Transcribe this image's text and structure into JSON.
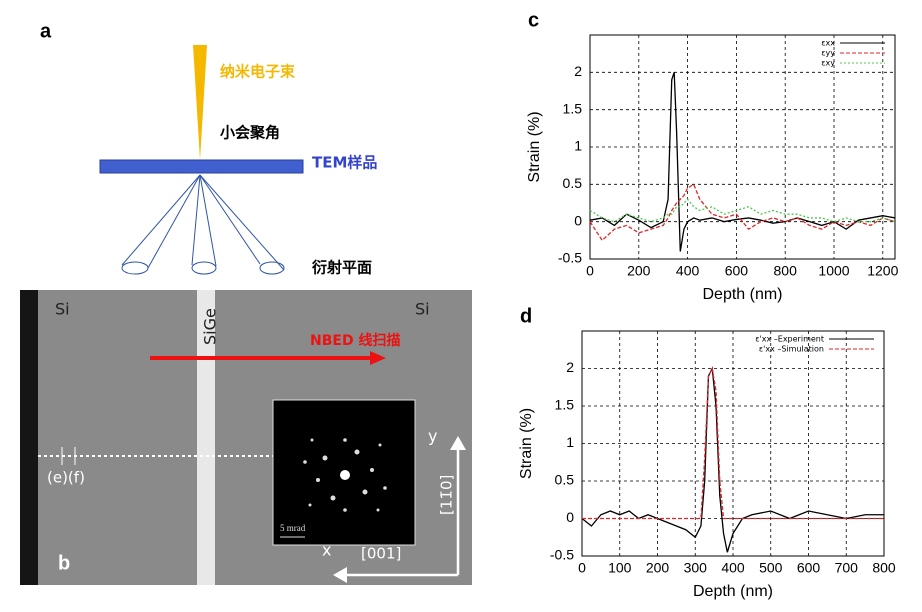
{
  "panel_a": {
    "label": "a",
    "beam": "纳米电子束",
    "angle": "小会聚角",
    "sample": "TEM样品",
    "plane": "衍射平面"
  },
  "panel_b": {
    "label": "b",
    "si_left": "Si",
    "sige": "SiGe",
    "si_right": "Si",
    "scan": "NBED 线扫描",
    "points": "(e)(f)",
    "scale": "5 mrad",
    "axis_y": "y",
    "dir_y": "[11̄0]",
    "axis_x": "x",
    "dir_x": "[001]"
  },
  "chart_data": [
    {
      "type": "line",
      "label": "c",
      "xlabel": "Depth (nm)",
      "ylabel": "Strain (%)",
      "xlim": [
        0,
        1250
      ],
      "ylim": [
        -0.5,
        2.5
      ],
      "xticks": [
        0,
        200,
        400,
        600,
        800,
        1000,
        1200
      ],
      "yticks": [
        -0.5,
        0,
        0.5,
        1,
        1.5,
        2
      ],
      "grid": true,
      "legend": "top-right",
      "x": [
        0,
        50,
        100,
        150,
        200,
        250,
        300,
        320,
        335,
        345,
        355,
        370,
        385,
        400,
        425,
        450,
        500,
        550,
        600,
        650,
        700,
        750,
        800,
        850,
        900,
        950,
        1000,
        1050,
        1100,
        1150,
        1200,
        1250
      ],
      "series": [
        {
          "name": "εxx",
          "color": "#000000",
          "style": "solid",
          "values": [
            0.02,
            0.05,
            -0.05,
            0.1,
            0.02,
            -0.08,
            0.0,
            0.3,
            1.9,
            2.0,
            1.2,
            -0.4,
            -0.1,
            0.0,
            0.05,
            0.02,
            0.05,
            0.0,
            0.03,
            0.05,
            0.02,
            -0.02,
            0.0,
            0.05,
            0.0,
            -0.05,
            0.0,
            -0.1,
            0.02,
            0.05,
            0.08,
            0.05
          ]
        },
        {
          "name": "εyy",
          "color": "#e0262a",
          "style": "dashed",
          "values": [
            0.0,
            -0.25,
            -0.1,
            -0.05,
            -0.15,
            -0.1,
            -0.05,
            0.05,
            0.15,
            0.2,
            0.25,
            0.3,
            0.35,
            0.45,
            0.5,
            0.3,
            0.1,
            0.05,
            0.1,
            -0.1,
            0.0,
            0.05,
            0.0,
            0.05,
            -0.05,
            -0.1,
            0.0,
            -0.05,
            0.0,
            -0.05,
            0.05,
            0.0
          ]
        },
        {
          "name": "εxy",
          "color": "#4fc84f",
          "style": "dotted",
          "values": [
            0.15,
            0.05,
            0.0,
            0.1,
            0.05,
            0.0,
            0.05,
            0.1,
            0.1,
            0.15,
            0.2,
            0.2,
            0.25,
            0.3,
            0.2,
            0.15,
            0.2,
            0.1,
            0.15,
            0.2,
            0.1,
            0.15,
            0.1,
            0.1,
            0.05,
            0.05,
            0.0,
            0.05,
            0.0,
            0.0,
            0.05,
            0.0
          ]
        }
      ]
    },
    {
      "type": "line",
      "label": "d",
      "xlabel": "Depth (nm)",
      "ylabel": "Strain (%)",
      "xlim": [
        0,
        800
      ],
      "ylim": [
        -0.5,
        2.5
      ],
      "xticks": [
        0,
        100,
        200,
        300,
        400,
        500,
        600,
        700,
        800
      ],
      "yticks": [
        -0.5,
        0,
        0.5,
        1,
        1.5,
        2
      ],
      "grid": true,
      "legend": "top-right",
      "x": [
        0,
        25,
        50,
        75,
        100,
        125,
        150,
        175,
        200,
        225,
        250,
        275,
        300,
        315,
        325,
        335,
        345,
        355,
        365,
        375,
        385,
        400,
        425,
        450,
        500,
        550,
        600,
        650,
        700,
        750,
        800
      ],
      "series": [
        {
          "name": "ε'xx –Experiment",
          "color": "#000000",
          "style": "solid",
          "values": [
            0.0,
            -0.1,
            0.05,
            0.1,
            0.05,
            0.1,
            0.0,
            0.05,
            0.0,
            -0.05,
            -0.1,
            -0.15,
            -0.25,
            -0.1,
            0.5,
            1.9,
            2.0,
            1.5,
            0.3,
            -0.2,
            -0.45,
            -0.2,
            0.0,
            0.05,
            0.1,
            0.0,
            0.1,
            0.05,
            0.0,
            0.05,
            0.05
          ]
        },
        {
          "name": "ε'xx –Simulation",
          "color": "#e0262a",
          "style": "dashed",
          "values": [
            0,
            0,
            0,
            0,
            0,
            0,
            0,
            0,
            0,
            0,
            0,
            0,
            0,
            0,
            0.8,
            1.9,
            2.0,
            1.7,
            0.5,
            0,
            0,
            0,
            0,
            0,
            0,
            0,
            0,
            0,
            0,
            0,
            0
          ]
        }
      ]
    }
  ]
}
